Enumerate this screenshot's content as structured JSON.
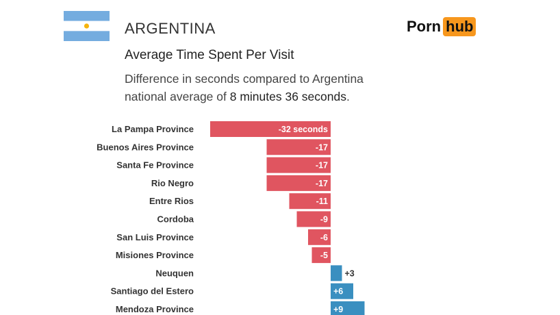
{
  "header": {
    "country": "ARGENTINA",
    "logo_part1": "Porn",
    "logo_part2": "hub",
    "title": "Average Time Spent Per Visit",
    "subtitle_line1": "Difference in seconds compared to Argentina",
    "subtitle_line2_pre": "national average of ",
    "subtitle_line2_bold": "8 minutes 36 seconds",
    "subtitle_line2_post": "."
  },
  "colors": {
    "negative": "#e05560",
    "positive": "#3a8fc0",
    "flag_blue": "#74acdf",
    "flag_sun": "#f6b40e",
    "logo_orange": "#f7971d"
  },
  "chart_data": {
    "type": "bar",
    "orientation": "horizontal",
    "title": "Average Time Spent Per Visit",
    "categories": [
      "La Pampa Province",
      "Buenos Aires Province",
      "Santa Fe Province",
      "Rio Negro",
      "Entre Rios",
      "Cordoba",
      "San Luis Province",
      "Misiones Province",
      "Neuquen",
      "Santiago del Estero",
      "Mendoza Province"
    ],
    "values": [
      -32,
      -17,
      -17,
      -17,
      -11,
      -9,
      -6,
      -5,
      3,
      6,
      9
    ],
    "labels": [
      "-32 seconds",
      "-17",
      "-17",
      "-17",
      "-11",
      "-9",
      "-6",
      "-5",
      "+3",
      "+6",
      "+9"
    ]
  }
}
